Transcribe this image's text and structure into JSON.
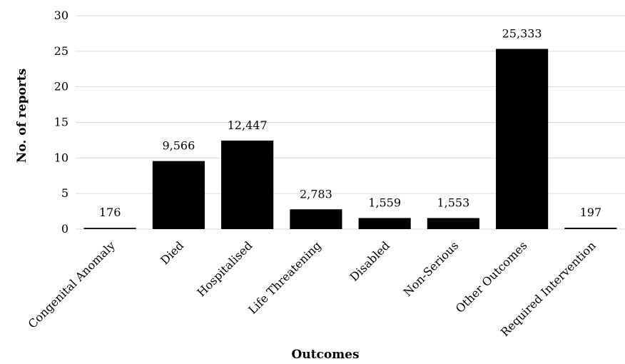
{
  "chart_data": {
    "type": "bar",
    "title": "",
    "xlabel": "Outcomes",
    "ylabel": "No. of reports",
    "ylim": [
      0,
      30
    ],
    "yticks": [
      0,
      5,
      10,
      15,
      20,
      25,
      30
    ],
    "grid": true,
    "categories": [
      "Congenital Anomaly",
      "Died",
      "Hospitalised",
      "Life Threatening",
      "Disabled",
      "Non-Serious",
      "Other Outcomes",
      "Required Intervention"
    ],
    "values": [
      0.176,
      9.566,
      12.447,
      2.783,
      1.559,
      1.553,
      25.333,
      0.197
    ],
    "data_labels": [
      "176",
      "9,566",
      "12,447",
      "2,783",
      "1,559",
      "1,553",
      "25,333",
      "197"
    ],
    "bar_color": "#000000",
    "grid_color": "#d9d9d9"
  }
}
